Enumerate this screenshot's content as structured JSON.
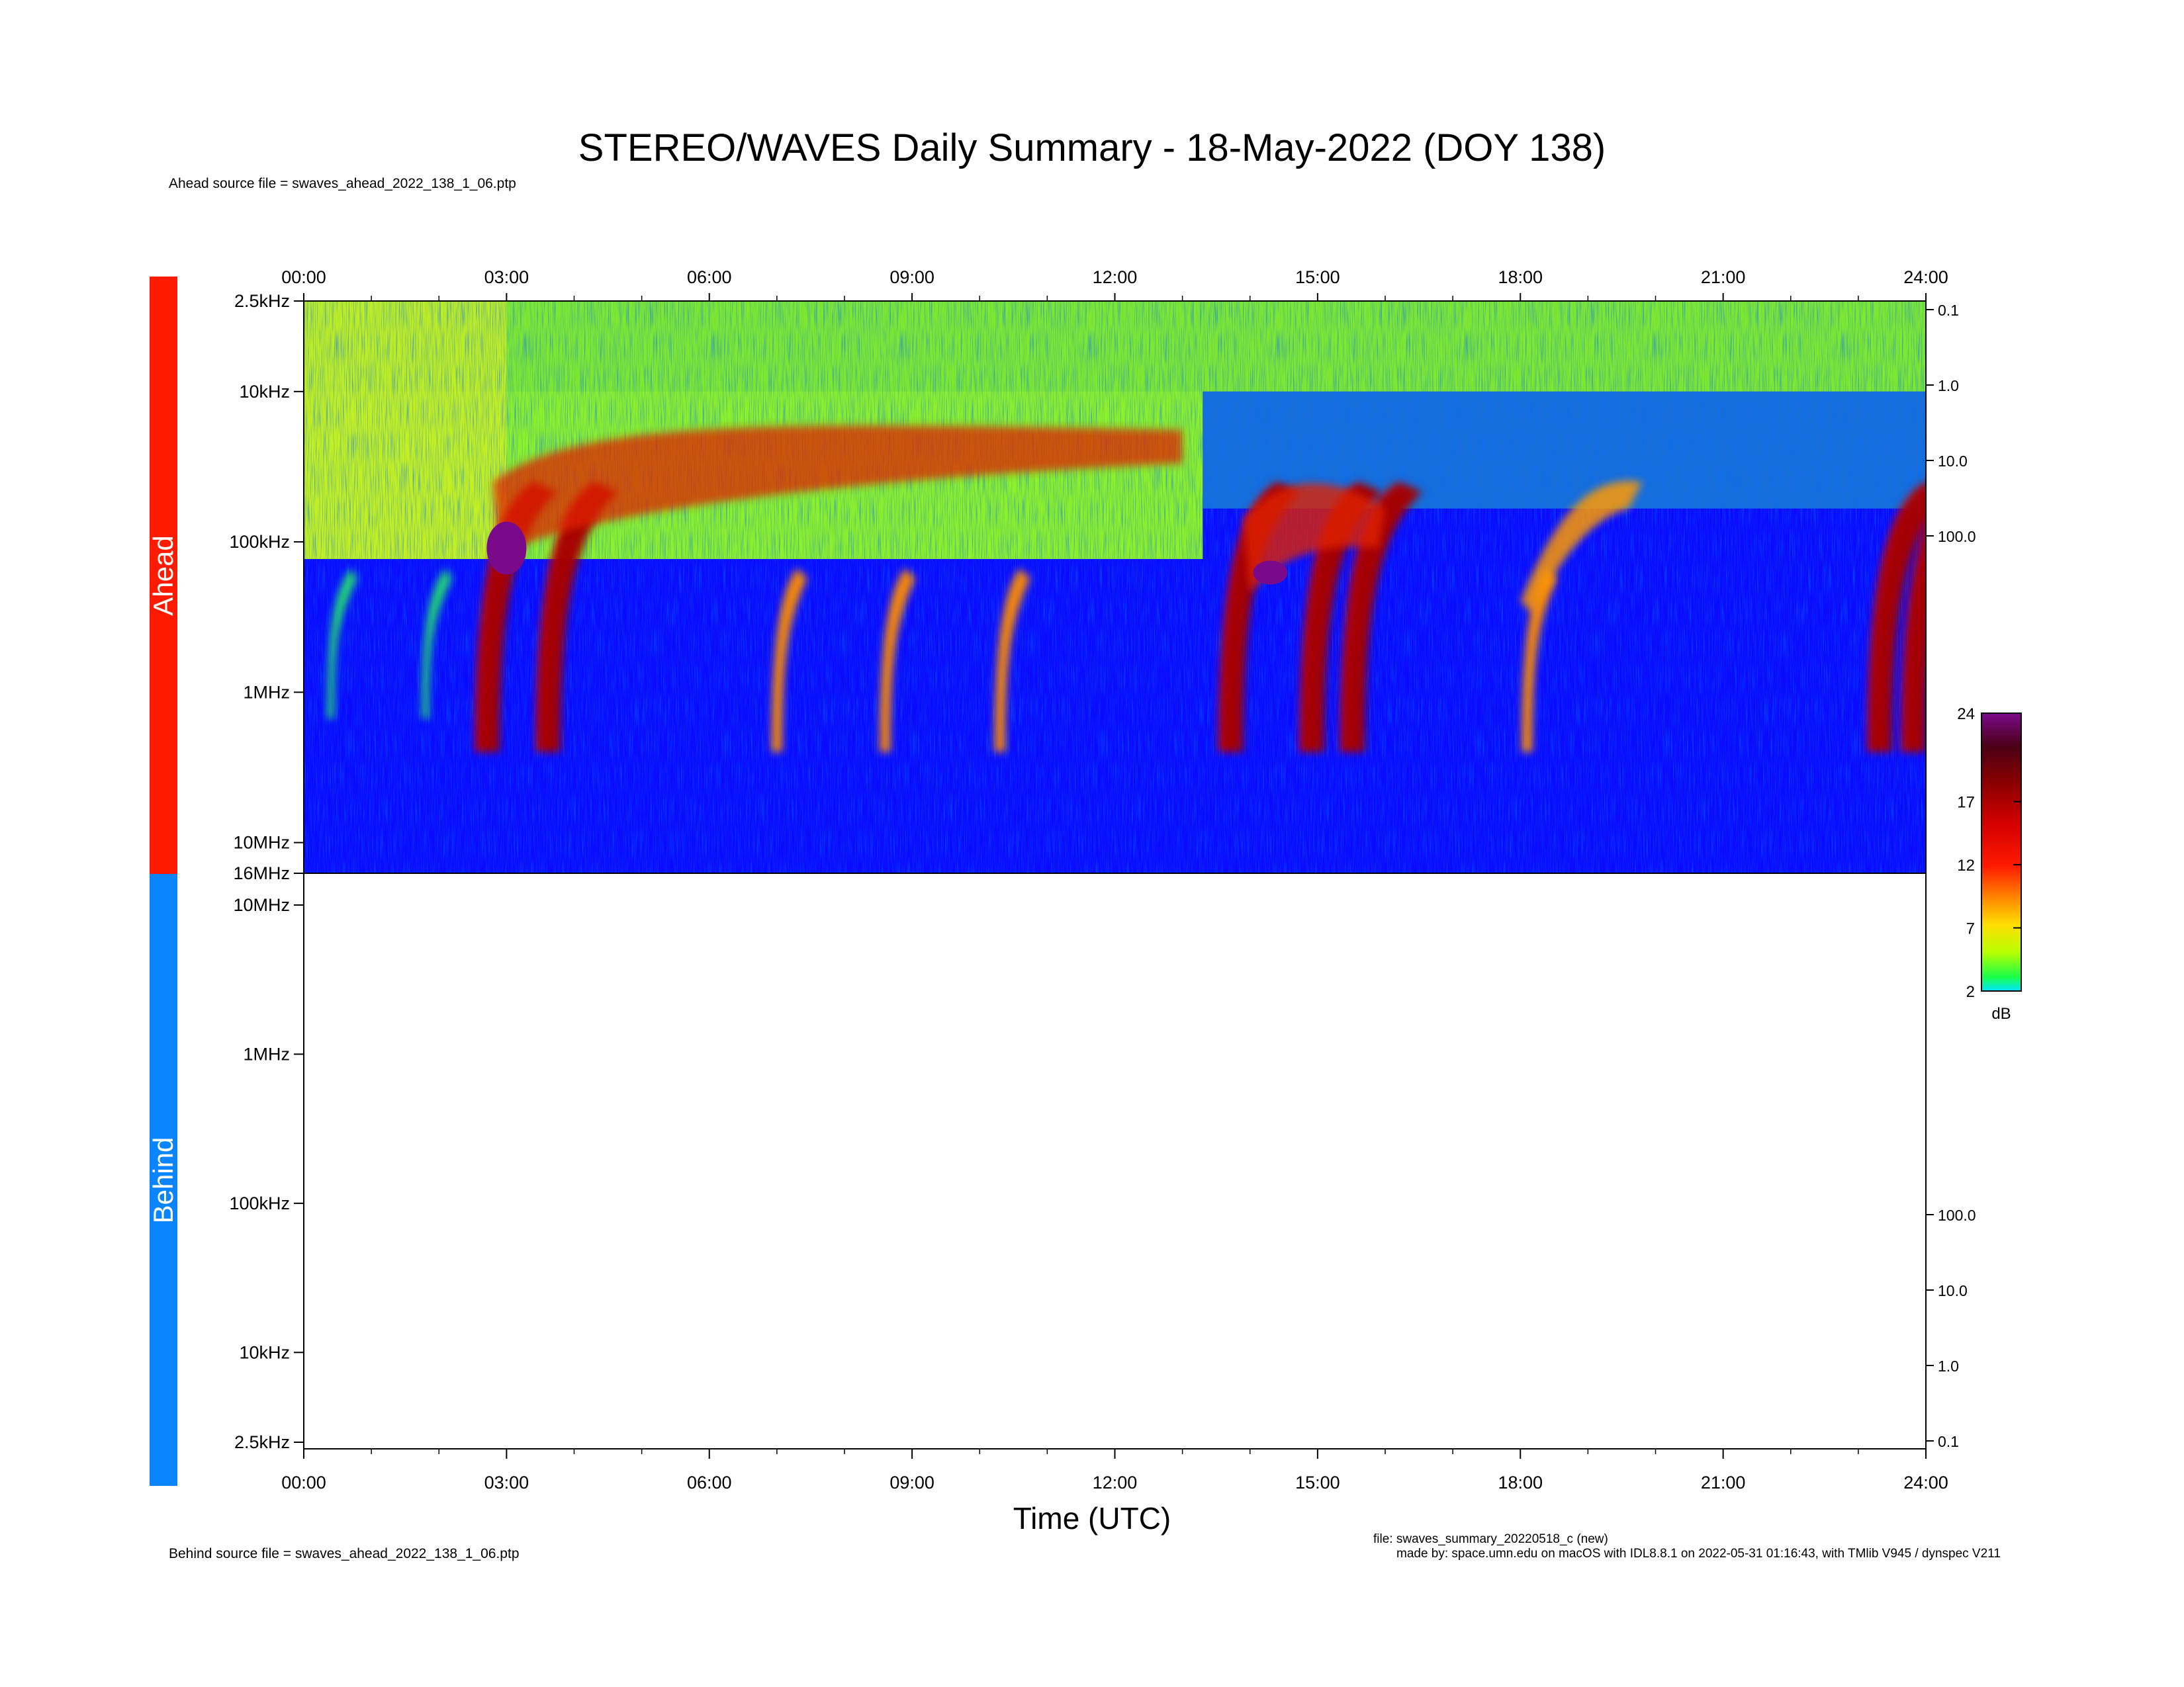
{
  "title": "STEREO/WAVES Daily Summary - 18-May-2022 (DOY 138)",
  "ahead_source": "Ahead source file = swaves_ahead_2022_138_1_06.ptp",
  "behind_source": "Behind source file = swaves_ahead_2022_138_1_06.ptp",
  "footer_file": "file: swaves_summary_20220518_c (new)",
  "footer_made_by": "made by: space.umn.edu on macOS with IDL8.8.1 on 2022-05-31 01:16:43, with TMlib V945 / dynspec V211",
  "colors": {
    "ahead": "#ff1a00",
    "behind": "#0a84ff",
    "background": "#0a0aff"
  },
  "chart_data": [
    {
      "type": "heatmap",
      "panel": "Ahead",
      "xlabel": "Time (UTC)",
      "x_ticks": [
        "00:00",
        "03:00",
        "06:00",
        "09:00",
        "12:00",
        "15:00",
        "18:00",
        "21:00",
        "24:00"
      ],
      "y_scale": "log",
      "y_ticks": [
        "2.5kHz",
        "10kHz",
        "100kHz",
        "1MHz",
        "10MHz",
        "16MHz"
      ],
      "y_range_khz": [
        2.5,
        16000
      ],
      "right_ticks": [
        "0.1",
        "1.0",
        "10.0",
        "100.0"
      ],
      "colorbar": {
        "unit": "dB",
        "ticks": [
          "24",
          "17",
          "12",
          "7",
          "2"
        ],
        "range": [
          2,
          24
        ]
      },
      "events": [
        {
          "name": "type III burst",
          "start_hour": 0.4,
          "strength": "weak"
        },
        {
          "name": "type III burst",
          "start_hour": 1.8,
          "strength": "weak"
        },
        {
          "name": "type III burst",
          "start_hour": 2.7,
          "strength": "strong"
        },
        {
          "name": "type III burst",
          "start_hour": 3.6,
          "strength": "strong"
        },
        {
          "name": "type III burst",
          "start_hour": 7.0,
          "strength": "moderate"
        },
        {
          "name": "type III burst",
          "start_hour": 8.6,
          "strength": "moderate"
        },
        {
          "name": "type III burst",
          "start_hour": 10.3,
          "strength": "moderate"
        },
        {
          "name": "type III burst",
          "start_hour": 13.7,
          "strength": "strong"
        },
        {
          "name": "type III burst",
          "start_hour": 14.9,
          "strength": "strong"
        },
        {
          "name": "type III burst",
          "start_hour": 15.5,
          "strength": "strong"
        },
        {
          "name": "type III burst",
          "start_hour": 18.1,
          "strength": "moderate"
        },
        {
          "name": "type III burst",
          "start_hour": 23.3,
          "strength": "strong"
        },
        {
          "name": "type III burst",
          "start_hour": 23.8,
          "strength": "strong"
        }
      ]
    },
    {
      "type": "heatmap",
      "panel": "Behind",
      "xlabel": "Time (UTC)",
      "x_ticks": [
        "00:00",
        "03:00",
        "06:00",
        "09:00",
        "12:00",
        "15:00",
        "18:00",
        "21:00",
        "24:00"
      ],
      "y_scale": "log",
      "y_ticks": [
        "10MHz",
        "1MHz",
        "100kHz",
        "10kHz",
        "2.5kHz"
      ],
      "right_ticks": [
        "100.0",
        "10.0",
        "1.0",
        "0.1"
      ],
      "values": []
    }
  ]
}
